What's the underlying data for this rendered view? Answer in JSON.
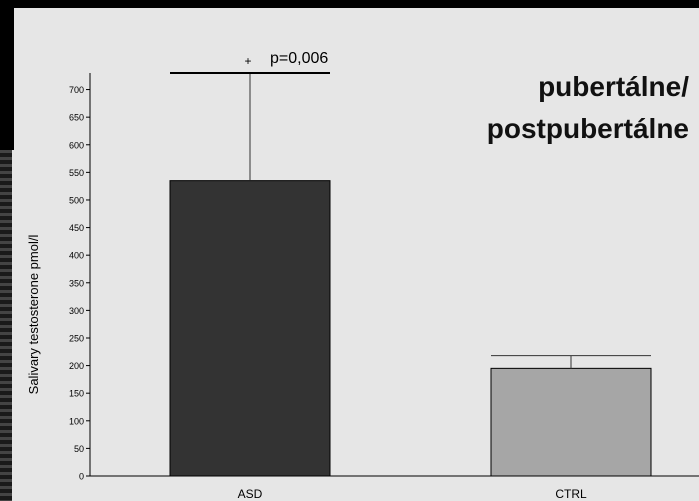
{
  "headline": {
    "line1": "pubertálne/",
    "line2": "postpubertálne"
  },
  "chart_data": {
    "type": "bar",
    "categories": [
      "ASD",
      "CTRL"
    ],
    "values": [
      535,
      195
    ],
    "error_upper": [
      730,
      218
    ],
    "ylabel": "Salivary testosterone pmol/l",
    "ylim": [
      0,
      730
    ],
    "yticks": [
      0,
      50,
      100,
      150,
      200,
      250,
      300,
      350,
      400,
      450,
      500,
      550,
      600,
      650,
      700
    ],
    "bar_colors": [
      "#333333",
      "#a6a6a6"
    ],
    "annotation": {
      "marker": "+",
      "text": "p=0,006"
    },
    "grid": false
  }
}
